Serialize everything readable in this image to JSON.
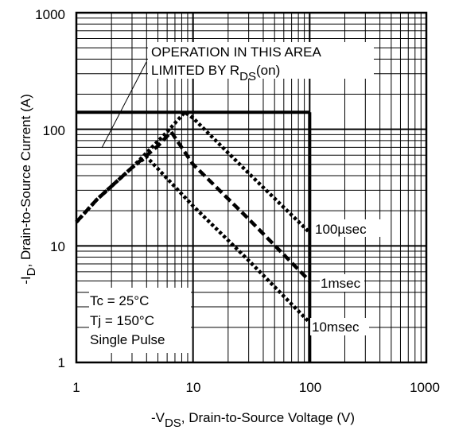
{
  "chart_data": {
    "type": "line",
    "x_scale": "log",
    "y_scale": "log",
    "xlim": [
      1,
      1000
    ],
    "ylim": [
      1,
      1000
    ],
    "x_ticks": [
      1,
      10,
      100,
      1000
    ],
    "y_ticks": [
      1,
      10,
      100,
      1000
    ],
    "x_tick_labels": [
      "1",
      "10",
      "100",
      "1000"
    ],
    "y_tick_labels": [
      "1",
      "10",
      "100",
      "1000"
    ],
    "xlabel": {
      "prefix": "-V",
      "sub": "DS",
      "suffix": ", Drain-to-Source Voltage (V)"
    },
    "ylabel": {
      "prefix": "-I",
      "sub": "D",
      "suffix": ",  Drain-to-Source Current (A)"
    },
    "grid": true,
    "limit_box": {
      "max_current": 140,
      "max_voltage": 100
    },
    "annotation": {
      "line1": "OPERATION IN THIS AREA",
      "line2_prefix": "LIMITED BY R",
      "line2_sub": "DS",
      "line2_suffix": "(on)"
    },
    "conditions": [
      "Tc = 25°C",
      "Tj = 150°C",
      "Single Pulse"
    ],
    "series": [
      {
        "name": "100µsec",
        "x": [
          1,
          1.5,
          3,
          6,
          8.5,
          10,
          30,
          100
        ],
        "y": [
          16,
          25,
          47,
          95,
          140,
          125,
          42,
          13
        ]
      },
      {
        "name": "1msec",
        "x": [
          1,
          1.5,
          3,
          5,
          6.5,
          10,
          30,
          100
        ],
        "y": [
          16,
          25,
          47,
          72,
          95,
          50,
          17,
          5
        ]
      },
      {
        "name": "10msec",
        "x": [
          1,
          1.5,
          3,
          4,
          10,
          30,
          100
        ],
        "y": [
          16,
          25,
          47,
          58,
          22,
          7.5,
          2.2
        ]
      }
    ]
  }
}
